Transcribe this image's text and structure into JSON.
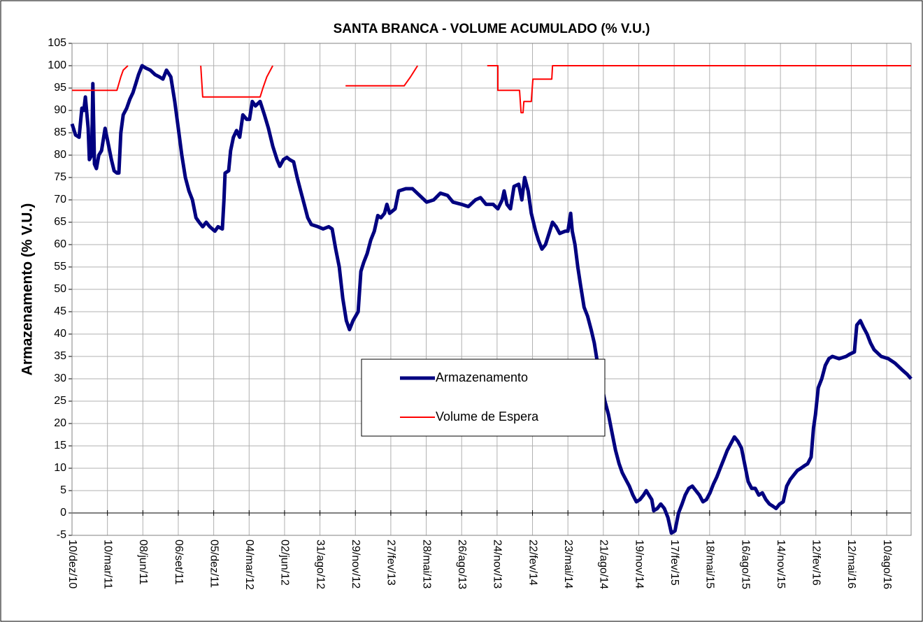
{
  "chart_data": {
    "type": "line",
    "title": "SANTA BRANCA - VOLUME ACUMULADO (% V.U.)",
    "y_label": "Armazenamento (% V.U.)",
    "xlim": [
      0,
      2132
    ],
    "xticks": [
      {
        "value": 0,
        "label": "10/dez/10"
      },
      {
        "value": 90,
        "label": "10/mar/11"
      },
      {
        "value": 180,
        "label": "08/jun/11"
      },
      {
        "value": 270,
        "label": "06/set/11"
      },
      {
        "value": 360,
        "label": "05/dez/11"
      },
      {
        "value": 450,
        "label": "04/mar/12"
      },
      {
        "value": 540,
        "label": "02/jun/12"
      },
      {
        "value": 630,
        "label": "31/ago/12"
      },
      {
        "value": 720,
        "label": "29/nov/12"
      },
      {
        "value": 810,
        "label": "27/fev/13"
      },
      {
        "value": 900,
        "label": "28/mai/13"
      },
      {
        "value": 990,
        "label": "26/ago/13"
      },
      {
        "value": 1080,
        "label": "24/nov/13"
      },
      {
        "value": 1170,
        "label": "22/fev/14"
      },
      {
        "value": 1260,
        "label": "23/mai/14"
      },
      {
        "value": 1350,
        "label": "21/ago/14"
      },
      {
        "value": 1440,
        "label": "19/nov/14"
      },
      {
        "value": 1530,
        "label": "17/fev/15"
      },
      {
        "value": 1620,
        "label": "18/mai/15"
      },
      {
        "value": 1710,
        "label": "16/ago/15"
      },
      {
        "value": 1800,
        "label": "14/nov/15"
      },
      {
        "value": 1890,
        "label": "12/fev/16"
      },
      {
        "value": 1980,
        "label": "12/mai/16"
      },
      {
        "value": 2070,
        "label": "10/ago/16"
      }
    ],
    "ylim": [
      -5,
      105
    ],
    "yticks": [
      -5,
      0,
      5,
      10,
      15,
      20,
      25,
      30,
      35,
      40,
      45,
      50,
      55,
      60,
      65,
      70,
      75,
      80,
      85,
      90,
      95,
      100,
      105
    ],
    "grid": true,
    "series": [
      {
        "name": "Armazenamento",
        "color": "#000080",
        "width": 5,
        "x": [
          0,
          9,
          18,
          25,
          30,
          34,
          41,
          44,
          50,
          53,
          57,
          62,
          68,
          75,
          84,
          91,
          100,
          107,
          114,
          119,
          124,
          130,
          139,
          147,
          155,
          162,
          169,
          178,
          187,
          199,
          211,
          222,
          231,
          240,
          251,
          261,
          270,
          279,
          288,
          297,
          306,
          315,
          323,
          332,
          341,
          350,
          363,
          371,
          382,
          386,
          389,
          398,
          403,
          410,
          418,
          426,
          434,
          444,
          451,
          458,
          466,
          478,
          489,
          499,
          510,
          521,
          528,
          537,
          546,
          553,
          563,
          572,
          581,
          590,
          599,
          608,
          625,
          638,
          652,
          661,
          670,
          679,
          688,
          697,
          705,
          714,
          727,
          734,
          741,
          750,
          759,
          768,
          777,
          785,
          794,
          800,
          807,
          821,
          830,
          848,
          865,
          883,
          901,
          919,
          936,
          954,
          968,
          990,
          1007,
          1025,
          1038,
          1052,
          1070,
          1082,
          1093,
          1098,
          1105,
          1114,
          1123,
          1135,
          1143,
          1150,
          1159,
          1167,
          1178,
          1185,
          1194,
          1203,
          1212,
          1221,
          1230,
          1239,
          1253,
          1260,
          1267,
          1271,
          1278,
          1285,
          1292,
          1301,
          1310,
          1319,
          1327,
          1336,
          1345,
          1354,
          1363,
          1372,
          1381,
          1390,
          1398,
          1407,
          1416,
          1425,
          1434,
          1443,
          1452,
          1459,
          1466,
          1473,
          1478,
          1487,
          1496,
          1505,
          1514,
          1523,
          1532,
          1541,
          1550,
          1558,
          1567,
          1576,
          1585,
          1594,
          1603,
          1612,
          1621,
          1630,
          1638,
          1647,
          1656,
          1665,
          1674,
          1683,
          1692,
          1701,
          1709,
          1718,
          1727,
          1736,
          1745,
          1754,
          1763,
          1772,
          1781,
          1789,
          1798,
          1807,
          1816,
          1825,
          1834,
          1843,
          1852,
          1860,
          1869,
          1878,
          1884,
          1889,
          1896,
          1905,
          1914,
          1923,
          1932,
          1949,
          1967,
          1976,
          1988,
          1994,
          2003,
          2011,
          2020,
          2029,
          2038,
          2056,
          2074,
          2091,
          2109,
          2122,
          2132
        ],
        "values": [
          87,
          84.5,
          84,
          90.5,
          90,
          93,
          86,
          79,
          80,
          96,
          78,
          77,
          80,
          81,
          86,
          83,
          79,
          76.5,
          76,
          76,
          85,
          89,
          90.5,
          92.5,
          94,
          96,
          98,
          100,
          99.5,
          99,
          98,
          97.5,
          97,
          99,
          97.5,
          92,
          86,
          80,
          75,
          72,
          70,
          66,
          65,
          64,
          65,
          64,
          63,
          64,
          63.5,
          70,
          76,
          76.5,
          81,
          84,
          85.5,
          84,
          89,
          88,
          88,
          92,
          91,
          92,
          89,
          86,
          82,
          79,
          77.5,
          79,
          79.5,
          79,
          78.5,
          75,
          72,
          69,
          66,
          64.5,
          64,
          63.5,
          64,
          63.5,
          59,
          55,
          48,
          43,
          41,
          43,
          45,
          54,
          56,
          58,
          61,
          63,
          66.5,
          66,
          67,
          69,
          67,
          68,
          72,
          72.5,
          72.5,
          71,
          69.5,
          70,
          71.5,
          71,
          69.5,
          69,
          68.5,
          70,
          70.5,
          69,
          69,
          68,
          70,
          72,
          69,
          68,
          73,
          73.5,
          70,
          75,
          72,
          67,
          63,
          61,
          59,
          60,
          62.5,
          65,
          64,
          62.5,
          63,
          63,
          67,
          63,
          60,
          55,
          51,
          46,
          44,
          41,
          38,
          33,
          29,
          25,
          22,
          18,
          14,
          11,
          9,
          7.5,
          6,
          4,
          2.5,
          3,
          4,
          5,
          4,
          3,
          0.5,
          1,
          2,
          1,
          -1,
          -4.5,
          -4,
          0,
          2,
          4,
          5.5,
          6,
          5,
          4,
          2.5,
          3,
          4.5,
          6.5,
          8,
          10,
          12,
          14,
          15.5,
          17,
          16,
          14.5,
          11,
          7,
          5.5,
          5.5,
          4,
          4.5,
          3,
          2,
          1.5,
          1,
          2,
          2.5,
          6,
          7.5,
          8.5,
          9.5,
          10,
          10.5,
          11,
          12.5,
          19,
          22,
          28,
          30,
          33,
          34.5,
          35,
          34.5,
          35,
          35.5,
          36,
          42,
          43,
          41.5,
          40,
          38,
          36.5,
          35,
          34.5,
          33.5,
          32,
          31,
          30
        ]
      },
      {
        "name": "Volume de Espera",
        "color": "#ff0000",
        "width": 2,
        "x": [
          0,
          114,
          119,
          124,
          130,
          142,
          null,
          327,
          332,
          478,
          485,
          495,
          510,
          null,
          695,
          844,
          860,
          878,
          null,
          1055,
          1082,
          1082,
          1137,
          1141,
          1146,
          1148,
          1167,
          1171,
          1219,
          1221,
          2132
        ],
        "values": [
          94.5,
          94.5,
          96,
          97.5,
          99,
          100,
          null,
          100,
          93,
          93,
          95,
          97.5,
          100,
          null,
          95.5,
          95.5,
          97.5,
          100,
          null,
          100,
          100,
          94.5,
          94.5,
          89.5,
          89.5,
          92,
          92,
          97,
          97,
          100,
          100
        ]
      }
    ]
  }
}
